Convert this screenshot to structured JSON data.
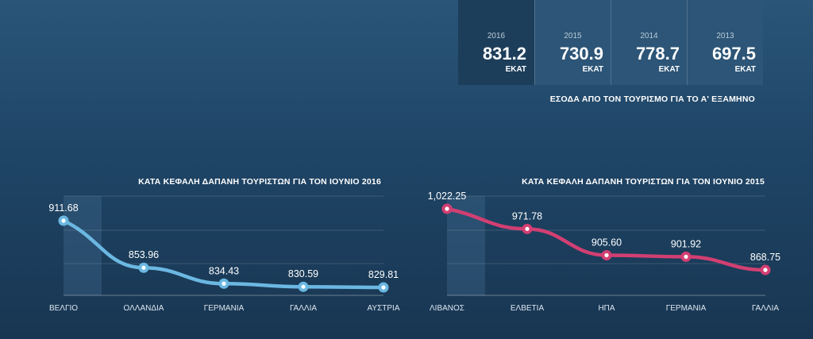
{
  "stats": [
    {
      "year": "2016",
      "value": "831.2",
      "unit": "ΕΚΑΤ"
    },
    {
      "year": "2015",
      "value": "730.9",
      "unit": "ΕΚΑΤ"
    },
    {
      "year": "2014",
      "value": "778.7",
      "unit": "ΕΚΑΤ"
    },
    {
      "year": "2013",
      "value": "697.5",
      "unit": "ΕΚΑΤ"
    }
  ],
  "stats_caption": "ΕΣΟΔΑ ΑΠΟ ΤΟΝ ΤΟΥΡΙΣΜΟ ΓΙΑ ΤΟ Α' ΕΞΑΜΗΝΟ",
  "colors": {
    "accent_2016": "#6bb8e2",
    "accent_2015": "#d23f72",
    "active_stat_bg": "#1d3e5b",
    "stat_bg": "#2c5577"
  },
  "chart_data": [
    {
      "type": "line",
      "title": "ΚΑΤΑ ΚΕΦΑΛΗ ΔΑΠΑΝΗ ΤΟΥΡΙΣΤΩΝ ΓΙΑ ΤΟΝ ΙΟΥΝΙΟ 2016",
      "categories": [
        "ΒΕΛΓΙΟ",
        "ΟΛΛΑΝΔΙΑ",
        "ΓΕΡΜΑΝΙΑ",
        "ΓΑΛΛΙΑ",
        "ΑΥΣΤΡΙΑ"
      ],
      "values": [
        911.68,
        853.96,
        834.43,
        830.59,
        829.81
      ],
      "labels": [
        "911.68",
        "853.96",
        "834.43",
        "830.59",
        "829.81"
      ],
      "color": "#6bb8e2",
      "smooth": true,
      "grid": true,
      "highlight_index": 0
    },
    {
      "type": "line",
      "title": "ΚΑΤΑ ΚΕΦΑΛΗ ΔΑΠΑΝΗ ΤΟΥΡΙΣΤΩΝ ΓΙΑ ΤΟΝ ΙΟΥΝΙΟ 2015",
      "categories": [
        "ΛΙΒΑΝΟΣ",
        "ΕΛΒΕΤΙΑ",
        "ΗΠΑ",
        "ΓΕΡΜΑΝΙΑ",
        "ΓΑΛΛΙΑ"
      ],
      "values": [
        1022.25,
        971.78,
        905.6,
        901.92,
        868.75
      ],
      "labels": [
        "1,022.25",
        "971.78",
        "905.60",
        "901.92",
        "868.75"
      ],
      "color": "#d23f72",
      "smooth": true,
      "grid": true,
      "highlight_index": 0
    }
  ]
}
